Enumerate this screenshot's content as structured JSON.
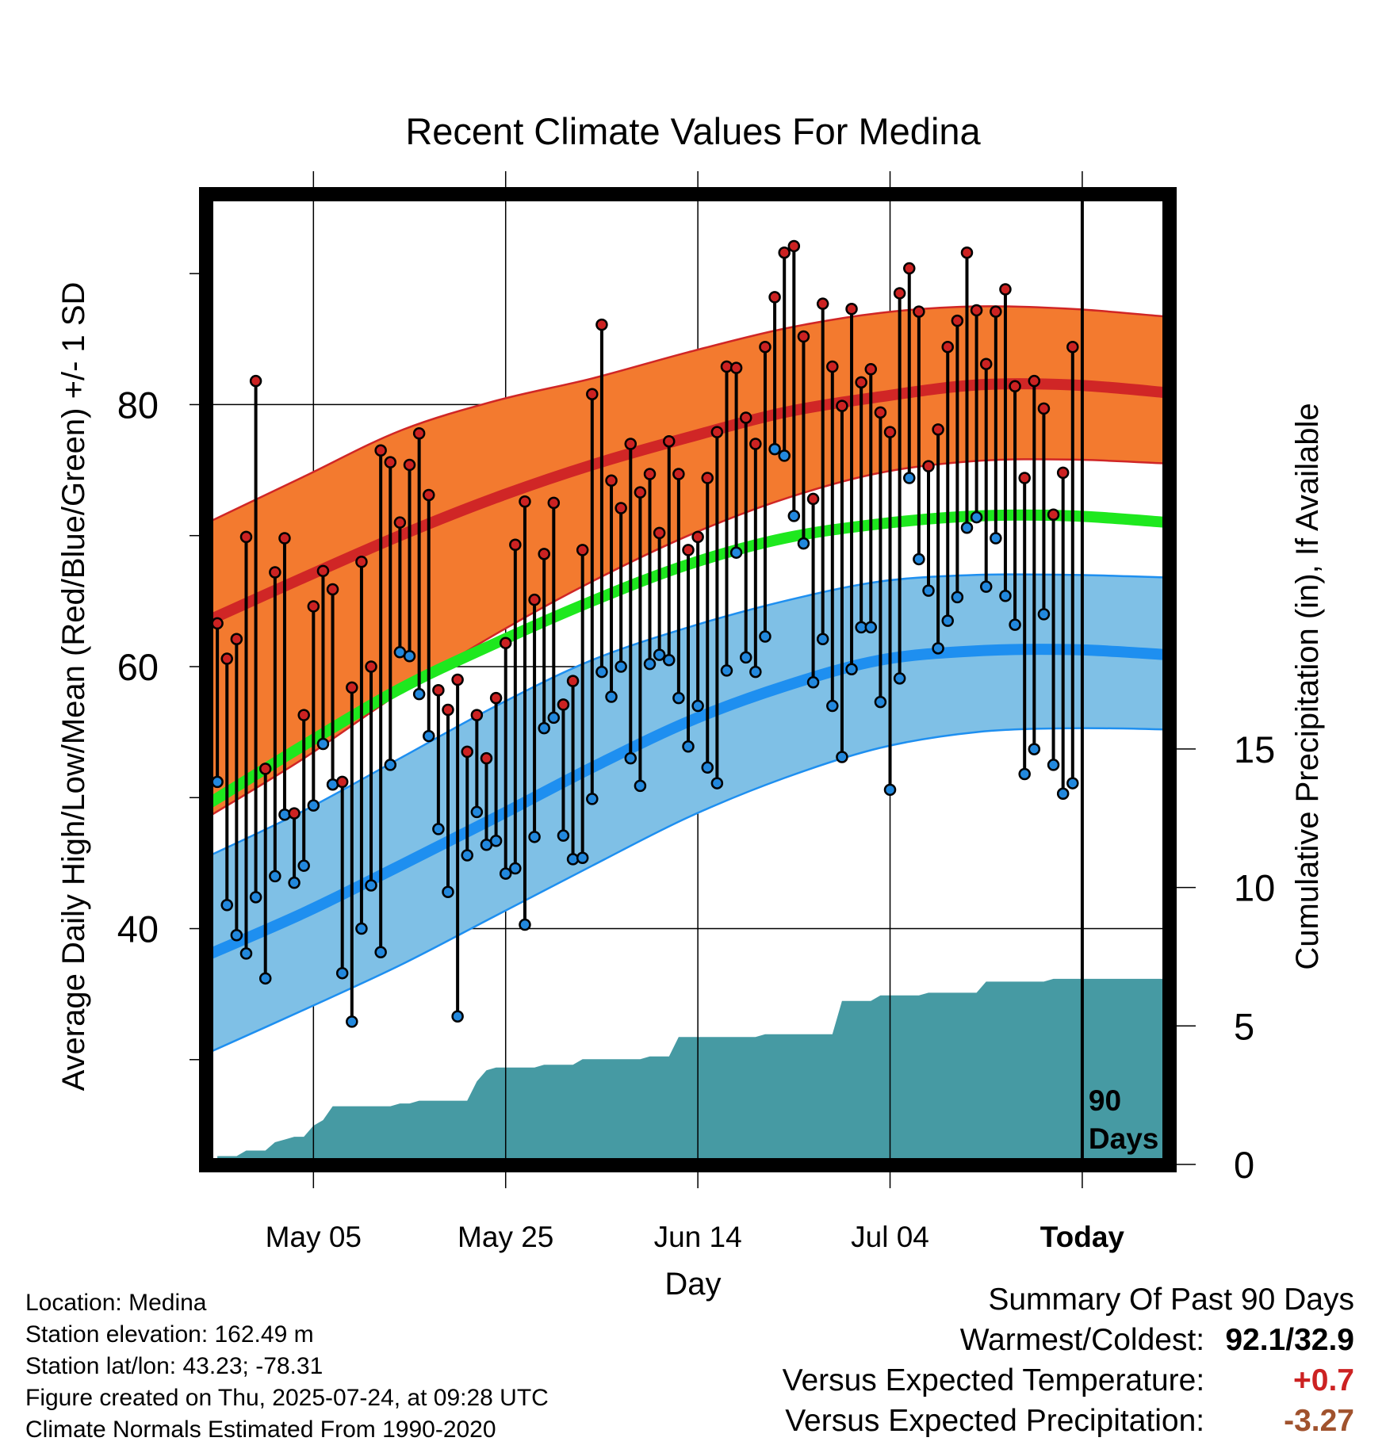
{
  "chart_data": {
    "type": "line",
    "title": "Recent Climate Values For Medina",
    "xlabel": "Day",
    "ylabel_left": "Average Daily High/Low/Mean (Red/Blue/Green) +/- 1 SD",
    "ylabel_right": "Cumulative Precipitation (in), If Available",
    "x_tick_labels": [
      "May 05",
      "May 25",
      "Jun 14",
      "Jul 04",
      "Today"
    ],
    "x_tick_days": [
      14,
      34,
      54,
      74,
      94
    ],
    "x_range_days": [
      3,
      103
    ],
    "y_left_ticks": [
      40,
      60,
      80
    ],
    "y_left_range": [
      22,
      96
    ],
    "y_right_ticks": [
      0,
      5,
      10,
      15
    ],
    "y_right_range": [
      0,
      35
    ],
    "today_marker": {
      "day": 94,
      "label_line1": "90",
      "label_line2": "Days"
    },
    "normals": {
      "days": [
        3,
        13,
        23,
        33,
        43,
        53,
        63,
        73,
        83,
        93,
        103
      ],
      "high_mean": [
        63.5,
        66.8,
        70.0,
        72.9,
        75.4,
        77.5,
        79.4,
        80.6,
        81.5,
        81.5,
        80.9
      ],
      "high_plus_sd": [
        71.0,
        74.5,
        78.0,
        80.3,
        82.0,
        84.0,
        85.8,
        87.0,
        87.5,
        87.3,
        86.7
      ],
      "high_minus_sd": [
        48.5,
        53.0,
        58.0,
        62.5,
        66.5,
        70.0,
        72.8,
        74.8,
        75.7,
        75.8,
        75.5
      ],
      "mean": [
        49.5,
        54.0,
        58.3,
        61.8,
        65.0,
        67.8,
        69.8,
        70.9,
        71.5,
        71.5,
        71.0
      ],
      "low_mean": [
        38.0,
        41.2,
        44.8,
        48.5,
        52.3,
        55.8,
        58.5,
        60.5,
        61.2,
        61.3,
        60.9
      ],
      "low_plus_sd": [
        45.5,
        49.0,
        53.0,
        57.0,
        60.5,
        63.0,
        65.0,
        66.5,
        67.0,
        67.0,
        66.8
      ],
      "low_minus_sd": [
        30.5,
        33.8,
        37.2,
        41.0,
        44.8,
        48.5,
        51.5,
        53.8,
        55.0,
        55.3,
        55.2
      ]
    },
    "series": [
      {
        "name": "High",
        "days": [
          4,
          5,
          6,
          7,
          8,
          9,
          10,
          11,
          12,
          13,
          14,
          15,
          16,
          17,
          18,
          19,
          20,
          21,
          22,
          23,
          24,
          25,
          26,
          27,
          28,
          29,
          30,
          31,
          32,
          33,
          34,
          35,
          36,
          37,
          38,
          39,
          40,
          41,
          42,
          43,
          44,
          45,
          46,
          47,
          48,
          49,
          50,
          51,
          52,
          53,
          54,
          55,
          56,
          57,
          58,
          59,
          60,
          61,
          62,
          63,
          64,
          65,
          66,
          67,
          68,
          69,
          70,
          71,
          72,
          73,
          74,
          75,
          76,
          77,
          78,
          79,
          80,
          81,
          82,
          83,
          84,
          85,
          86,
          87,
          88,
          89,
          90,
          91,
          92,
          93
        ],
        "values": [
          63.3,
          60.6,
          62.1,
          69.9,
          81.8,
          52.2,
          67.2,
          69.8,
          48.8,
          56.3,
          64.6,
          67.3,
          65.9,
          51.2,
          58.4,
          68.0,
          60.0,
          76.5,
          75.6,
          71.0,
          75.4,
          77.8,
          73.1,
          58.2,
          56.7,
          59.0,
          53.5,
          56.3,
          53.0,
          57.6,
          61.8,
          69.3,
          72.6,
          65.1,
          68.6,
          72.5,
          57.1,
          58.9,
          68.9,
          80.8,
          86.1,
          74.2,
          72.1,
          77.0,
          73.3,
          74.7,
          70.2,
          77.2,
          74.7,
          68.9,
          69.9,
          74.4,
          77.9,
          82.9,
          82.8,
          79.0,
          77.0,
          84.4,
          88.2,
          91.6,
          92.1,
          85.2,
          72.8,
          87.7,
          82.9,
          79.9,
          87.3,
          81.7,
          82.7,
          79.4,
          77.9,
          88.5,
          90.4,
          87.1,
          75.3,
          78.1,
          84.4,
          86.4,
          91.6,
          87.2,
          83.1,
          87.1,
          88.8,
          81.4,
          74.4,
          81.8,
          79.7,
          71.6,
          74.8,
          84.4
        ]
      },
      {
        "name": "Low",
        "days": [
          4,
          5,
          6,
          7,
          8,
          9,
          10,
          11,
          12,
          13,
          14,
          15,
          16,
          17,
          18,
          19,
          20,
          21,
          22,
          23,
          24,
          25,
          26,
          27,
          28,
          29,
          30,
          31,
          32,
          33,
          34,
          35,
          36,
          37,
          38,
          39,
          40,
          41,
          42,
          43,
          44,
          45,
          46,
          47,
          48,
          49,
          50,
          51,
          52,
          53,
          54,
          55,
          56,
          57,
          58,
          59,
          60,
          61,
          62,
          63,
          64,
          65,
          66,
          67,
          68,
          69,
          70,
          71,
          72,
          73,
          74,
          75,
          76,
          77,
          78,
          79,
          80,
          81,
          82,
          83,
          84,
          85,
          86,
          87,
          88,
          89,
          90,
          91,
          92,
          93
        ],
        "values": [
          51.2,
          41.8,
          39.5,
          38.1,
          42.4,
          36.2,
          44.0,
          48.7,
          43.5,
          44.8,
          49.4,
          54.1,
          51.0,
          36.6,
          32.9,
          40.0,
          43.3,
          38.2,
          52.5,
          61.1,
          60.8,
          57.9,
          54.7,
          47.6,
          42.8,
          33.3,
          45.6,
          48.9,
          46.4,
          46.7,
          44.2,
          44.6,
          40.3,
          47.0,
          55.3,
          56.1,
          47.1,
          45.3,
          45.4,
          49.9,
          59.6,
          57.7,
          60.0,
          53.0,
          50.9,
          60.2,
          60.9,
          60.5,
          57.6,
          53.9,
          57.0,
          52.3,
          51.1,
          59.7,
          68.7,
          60.7,
          59.6,
          62.3,
          76.6,
          76.1,
          71.5,
          69.4,
          58.8,
          62.1,
          57.0,
          53.1,
          59.8,
          63.0,
          63.0,
          57.3,
          50.6,
          59.1,
          74.4,
          68.2,
          65.8,
          61.4,
          63.5,
          65.3,
          70.6,
          71.4,
          66.1,
          69.8,
          65.4,
          63.2,
          51.8,
          53.7,
          64.0,
          52.5,
          50.3,
          51.1
        ]
      }
    ],
    "precipitation": {
      "days": [
        4,
        5,
        6,
        7,
        8,
        9,
        10,
        11,
        12,
        13,
        14,
        15,
        16,
        17,
        18,
        19,
        20,
        21,
        22,
        23,
        24,
        25,
        26,
        27,
        28,
        29,
        30,
        31,
        32,
        33,
        34,
        35,
        36,
        37,
        38,
        39,
        40,
        41,
        42,
        43,
        44,
        45,
        46,
        47,
        48,
        49,
        50,
        51,
        52,
        53,
        54,
        55,
        56,
        57,
        58,
        59,
        60,
        61,
        62,
        63,
        64,
        65,
        66,
        67,
        68,
        69,
        70,
        71,
        72,
        73,
        74,
        75,
        76,
        77,
        78,
        79,
        80,
        81,
        82,
        83,
        84,
        85,
        86,
        87,
        88,
        89,
        90,
        91,
        92,
        93,
        94,
        95,
        96,
        97,
        98,
        99,
        100,
        101,
        102,
        103
      ],
      "values": [
        0.3,
        0.3,
        0.3,
        0.5,
        0.5,
        0.5,
        0.8,
        0.9,
        1.0,
        1.0,
        1.4,
        1.6,
        2.1,
        2.1,
        2.1,
        2.1,
        2.1,
        2.1,
        2.1,
        2.2,
        2.2,
        2.3,
        2.3,
        2.3,
        2.3,
        2.3,
        2.3,
        3.0,
        3.4,
        3.5,
        3.5,
        3.5,
        3.5,
        3.5,
        3.6,
        3.6,
        3.6,
        3.6,
        3.8,
        3.8,
        3.8,
        3.8,
        3.8,
        3.8,
        3.8,
        3.9,
        3.9,
        3.9,
        4.6,
        4.6,
        4.6,
        4.6,
        4.6,
        4.6,
        4.6,
        4.6,
        4.6,
        4.7,
        4.7,
        4.7,
        4.7,
        4.7,
        4.7,
        4.7,
        4.7,
        5.9,
        5.9,
        5.9,
        5.9,
        6.1,
        6.1,
        6.1,
        6.1,
        6.1,
        6.2,
        6.2,
        6.2,
        6.2,
        6.2,
        6.2,
        6.6,
        6.6,
        6.6,
        6.6,
        6.6,
        6.6,
        6.6,
        6.7,
        6.7,
        6.7,
        6.7,
        6.7,
        6.7,
        6.7,
        6.7,
        6.7,
        6.7,
        6.7,
        6.7,
        6.7
      ]
    }
  },
  "info": {
    "location": "Location: Medina",
    "elevation": "Station elevation: 162.49 m",
    "latlon": "Station lat/lon: 43.23; -78.31",
    "created": "Figure created on Thu, 2025-07-24, at 09:28 UTC",
    "normals": "Climate Normals Estimated From 1990-2020"
  },
  "summary": {
    "heading": "Summary Of Past 90 Days",
    "warmest_coldest_label": "Warmest/Coldest:",
    "warmest_coldest_value": "92.1/32.9",
    "temp_label": "Versus Expected Temperature:",
    "temp_value": "+0.7",
    "precip_label": "Versus Expected Precipitation:",
    "precip_value": "-3.27"
  },
  "colors": {
    "high_band": "#f37a2f",
    "high_line": "#d02626",
    "mean_line": "#1ee81e",
    "low_band": "#7fc0e6",
    "low_line": "#1e8ff0",
    "precip_fill": "#469aa3",
    "high_dot": "#cc2222",
    "low_dot": "#2288dd",
    "temp_value": "#cc2222",
    "precip_value": "#a0522d"
  }
}
